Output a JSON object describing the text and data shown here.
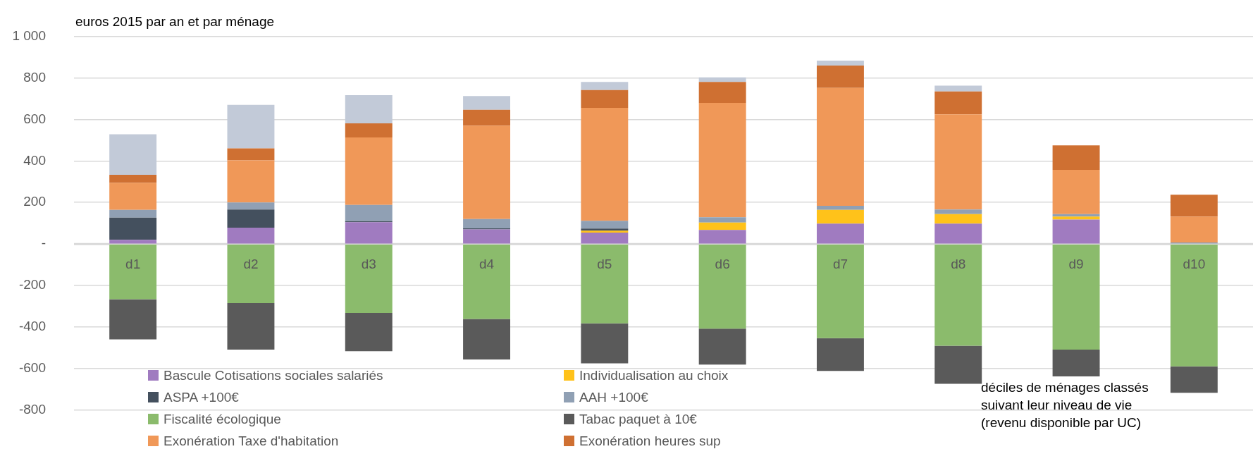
{
  "chart_data": {
    "type": "bar",
    "stacked": true,
    "categories": [
      "d1",
      "d2",
      "d3",
      "d4",
      "d5",
      "d6",
      "d7",
      "d8",
      "d9",
      "d10"
    ],
    "series": [
      {
        "name": "Bascule Cotisations sociales salariés",
        "color": "#a07bc0",
        "values": [
          20,
          79,
          105,
          70,
          55,
          68,
          98,
          98,
          118,
          2
        ]
      },
      {
        "name": "Individualisation au choix",
        "color": "#ffc21a",
        "values": [
          0,
          0,
          0,
          0,
          9,
          35,
          66,
          46,
          14,
          0
        ]
      },
      {
        "name": "ASPA +100€",
        "color": "#44505e",
        "values": [
          107,
          87,
          5,
          5,
          10,
          0,
          0,
          0,
          0,
          0
        ]
      },
      {
        "name": "AAH +100€",
        "color": "#90a0b4",
        "values": [
          37,
          34,
          78,
          45,
          38,
          26,
          20,
          22,
          12,
          5
        ]
      },
      {
        "name": "Fiscalité écologique",
        "color": "#8bbb6c",
        "values": [
          -266,
          -284,
          -332,
          -361,
          -382,
          -407,
          -453,
          -490,
          -508,
          -589
        ]
      },
      {
        "name": "Tabac paquet à 10€",
        "color": "#5a5a5a",
        "values": [
          -193,
          -224,
          -184,
          -195,
          -192,
          -173,
          -158,
          -183,
          -129,
          -127
        ]
      },
      {
        "name": "Exonération Taxe d'habitation",
        "color": "#f09858",
        "values": [
          130,
          203,
          325,
          450,
          543,
          550,
          567,
          458,
          213,
          125
        ]
      },
      {
        "name": "Exonération heures sup",
        "color": "#cf7032",
        "values": [
          39,
          57,
          68,
          76,
          86,
          101,
          108,
          110,
          118,
          105
        ]
      },
      {
        "color": "#c2cad8",
        "values": [
          195,
          210,
          135,
          66,
          39,
          22,
          24,
          28,
          0,
          0
        ]
      }
    ],
    "ylim": [
      -800,
      1000
    ],
    "yticks": [
      {
        "value": -800,
        "label": "-800"
      },
      {
        "value": -600,
        "label": "-600"
      },
      {
        "value": -400,
        "label": "-400"
      },
      {
        "value": -200,
        "label": "-200"
      },
      {
        "value": 0,
        "label": "-"
      },
      200,
      400,
      600,
      800,
      {
        "value": 1000,
        "label": "1 000"
      }
    ],
    "grid": "y",
    "legend": "bottom",
    "annotations": [
      "euros 2015 par an et par ménage",
      "déciles de ménages classés suivant leur niveau de vie (revenu disponible par UC)"
    ]
  }
}
